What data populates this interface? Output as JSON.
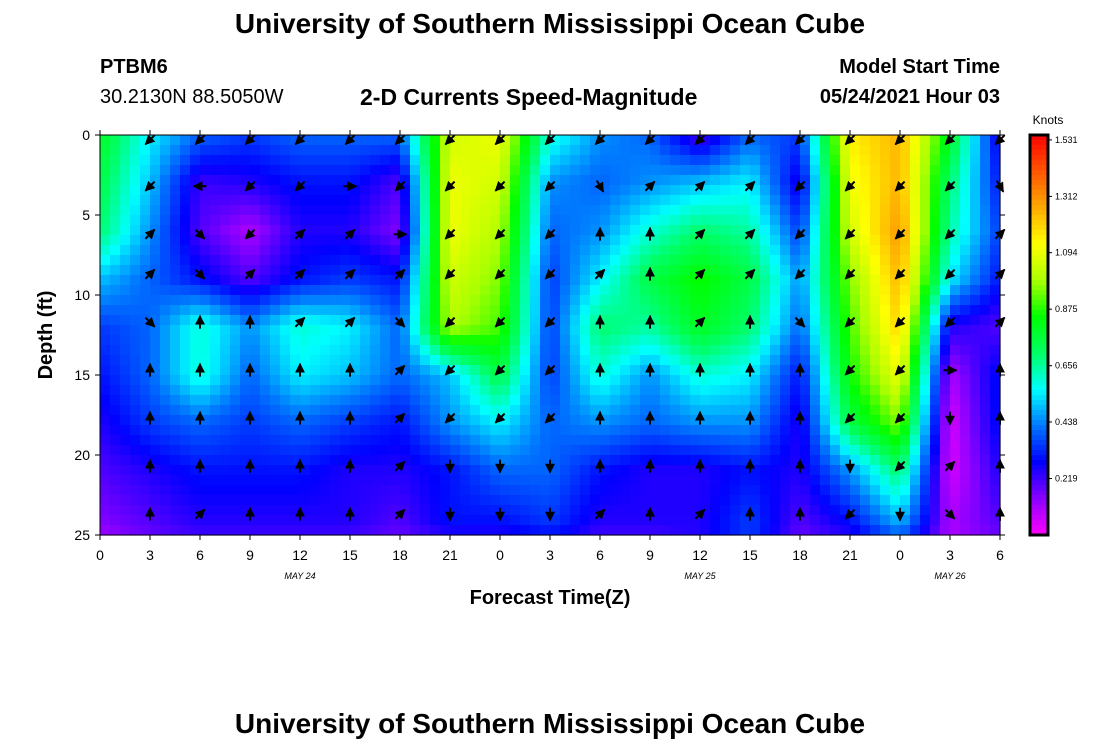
{
  "page": {
    "title_top": "University of Southern Mississippi Ocean Cube",
    "title_bottom": "University of Southern Mississippi Ocean Cube",
    "station": "PTBM6",
    "coords": "30.2130N  88.5050W",
    "subtitle": "2-D Currents Speed-Magnitude",
    "model_start_label": "Model Start Time",
    "model_start_value": "05/24/2021 Hour 03"
  },
  "chart_data": {
    "type": "heatmap",
    "title": "2-D Currents Speed-Magnitude",
    "xlabel": "Forecast Time(Z)",
    "ylabel": "Depth (ft)",
    "xlim": [
      0,
      54
    ],
    "ylim": [
      0,
      25
    ],
    "x_ticks": [
      {
        "x": 0,
        "label": "0"
      },
      {
        "x": 3,
        "label": "3"
      },
      {
        "x": 6,
        "label": "6"
      },
      {
        "x": 9,
        "label": "9"
      },
      {
        "x": 12,
        "label": "12"
      },
      {
        "x": 15,
        "label": "15"
      },
      {
        "x": 18,
        "label": "18"
      },
      {
        "x": 21,
        "label": "21"
      },
      {
        "x": 24,
        "label": "0"
      },
      {
        "x": 27,
        "label": "3"
      },
      {
        "x": 30,
        "label": "6"
      },
      {
        "x": 33,
        "label": "9"
      },
      {
        "x": 36,
        "label": "12"
      },
      {
        "x": 39,
        "label": "15"
      },
      {
        "x": 42,
        "label": "18"
      },
      {
        "x": 45,
        "label": "21"
      },
      {
        "x": 48,
        "label": "0"
      },
      {
        "x": 51,
        "label": "3"
      },
      {
        "x": 54,
        "label": "6"
      }
    ],
    "y_ticks": [
      {
        "y": 0,
        "label": "0"
      },
      {
        "y": 5,
        "label": "5"
      },
      {
        "y": 10,
        "label": "10"
      },
      {
        "y": 15,
        "label": "15"
      },
      {
        "y": 20,
        "label": "20"
      },
      {
        "y": 25,
        "label": "25"
      }
    ],
    "date_labels": [
      {
        "x": 12,
        "label": "MAY 24"
      },
      {
        "x": 36,
        "label": "MAY 25"
      },
      {
        "x": 51,
        "label": "MAY 26"
      }
    ],
    "colorbar": {
      "units": "Knots",
      "min": 0,
      "max": 1.55,
      "ticks": [
        1.531,
        1.312,
        1.094,
        0.875,
        0.656,
        0.438,
        0.219
      ],
      "tick_labels": [
        "1.531",
        "1.312",
        "1.094",
        "0.875",
        "0.656",
        "0.438",
        "0.219"
      ],
      "colors": [
        "#ff00ff",
        "#8a00ff",
        "#0000ff",
        "#0077ff",
        "#00ffff",
        "#00ff66",
        "#00ff00",
        "#aaff00",
        "#ffff00",
        "#ffaa00",
        "#ff5500",
        "#ff0000"
      ]
    },
    "columns_x": [
      0,
      3,
      6,
      9,
      12,
      15,
      18,
      21,
      24,
      27,
      30,
      33,
      36,
      39,
      42,
      45,
      48,
      51,
      54
    ],
    "rows_depth": [
      0,
      3,
      6,
      9,
      12,
      15,
      18,
      21,
      24,
      25
    ],
    "speed_grid": [
      [
        0.8,
        0.55,
        0.4,
        0.35,
        0.4,
        0.4,
        0.4,
        1.05,
        1.1,
        0.6,
        0.45,
        0.4,
        0.2,
        0.4,
        0.35,
        1.15,
        1.25,
        0.8,
        0.25
      ],
      [
        0.75,
        0.5,
        0.22,
        0.25,
        0.3,
        0.3,
        0.2,
        1.1,
        1.05,
        0.45,
        0.4,
        0.45,
        0.5,
        0.55,
        0.25,
        1.1,
        1.25,
        0.7,
        0.3
      ],
      [
        0.7,
        0.45,
        0.2,
        0.1,
        0.25,
        0.25,
        0.15,
        1.1,
        1.0,
        0.4,
        0.45,
        0.6,
        0.7,
        0.65,
        0.35,
        1.05,
        1.3,
        0.65,
        0.35
      ],
      [
        0.5,
        0.4,
        0.3,
        0.2,
        0.3,
        0.35,
        0.3,
        1.05,
        0.95,
        0.35,
        0.55,
        0.75,
        0.85,
        0.75,
        0.45,
        0.95,
        1.25,
        0.55,
        0.3
      ],
      [
        0.35,
        0.4,
        0.6,
        0.45,
        0.6,
        0.55,
        0.4,
        1.0,
        0.9,
        0.35,
        0.7,
        0.65,
        0.8,
        0.7,
        0.4,
        0.9,
        1.2,
        0.25,
        0.2
      ],
      [
        0.3,
        0.4,
        0.6,
        0.4,
        0.55,
        0.5,
        0.4,
        0.5,
        0.75,
        0.35,
        0.6,
        0.45,
        0.6,
        0.55,
        0.3,
        0.85,
        1.1,
        0.1,
        0.3
      ],
      [
        0.25,
        0.35,
        0.4,
        0.35,
        0.4,
        0.35,
        0.3,
        0.45,
        0.55,
        0.4,
        0.45,
        0.4,
        0.45,
        0.45,
        0.25,
        0.75,
        0.95,
        0.05,
        0.3
      ],
      [
        0.2,
        0.25,
        0.3,
        0.3,
        0.3,
        0.25,
        0.25,
        0.3,
        0.4,
        0.4,
        0.3,
        0.25,
        0.25,
        0.3,
        0.25,
        0.45,
        0.7,
        0.05,
        0.25
      ],
      [
        0.15,
        0.2,
        0.25,
        0.25,
        0.25,
        0.25,
        0.2,
        0.3,
        0.3,
        0.35,
        0.25,
        0.25,
        0.25,
        0.35,
        0.2,
        0.3,
        0.5,
        0.1,
        0.2
      ],
      [
        0.12,
        0.18,
        0.22,
        0.22,
        0.22,
        0.22,
        0.18,
        0.25,
        0.25,
        0.3,
        0.22,
        0.22,
        0.25,
        0.35,
        0.18,
        0.25,
        0.4,
        0.1,
        0.18
      ]
    ],
    "vectors": {
      "columns_x": [
        3,
        6,
        9,
        12,
        15,
        18,
        21,
        24,
        27,
        30,
        33,
        36,
        39,
        42,
        45,
        48,
        51,
        54
      ],
      "rows_depth": [
        0.3,
        3.2,
        6.2,
        8.7,
        11.7,
        14.7,
        17.7,
        20.7,
        23.7
      ],
      "angles_deg": [
        [
          225,
          225,
          225,
          225,
          225,
          225,
          225,
          225,
          225,
          225,
          225,
          225,
          225,
          225,
          225,
          225,
          225,
          225
        ],
        [
          225,
          180,
          225,
          225,
          0,
          225,
          225,
          225,
          225,
          300,
          45,
          45,
          45,
          225,
          225,
          225,
          225,
          300
        ],
        [
          45,
          315,
          225,
          45,
          45,
          0,
          225,
          225,
          225,
          90,
          90,
          45,
          45,
          225,
          225,
          225,
          225,
          45
        ],
        [
          45,
          315,
          45,
          45,
          45,
          45,
          225,
          225,
          225,
          45,
          90,
          45,
          45,
          225,
          225,
          225,
          225,
          45
        ],
        [
          315,
          90,
          90,
          45,
          45,
          315,
          225,
          225,
          225,
          90,
          90,
          45,
          90,
          315,
          225,
          225,
          225,
          45
        ],
        [
          90,
          90,
          90,
          90,
          90,
          45,
          225,
          225,
          225,
          90,
          90,
          90,
          90,
          90,
          225,
          225,
          0,
          90
        ],
        [
          90,
          90,
          90,
          90,
          90,
          45,
          225,
          225,
          225,
          90,
          90,
          90,
          90,
          90,
          225,
          225,
          270,
          90
        ],
        [
          90,
          90,
          90,
          90,
          90,
          45,
          270,
          270,
          270,
          90,
          90,
          90,
          90,
          90,
          270,
          225,
          45,
          90
        ],
        [
          90,
          45,
          90,
          90,
          90,
          45,
          270,
          270,
          270,
          45,
          90,
          45,
          90,
          90,
          225,
          270,
          315,
          90
        ]
      ]
    }
  }
}
